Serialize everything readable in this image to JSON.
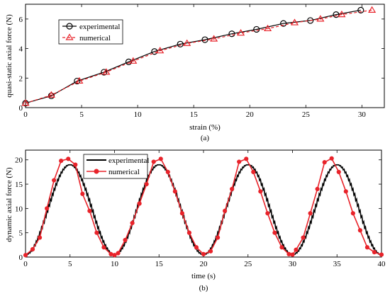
{
  "chart_data": [
    {
      "type": "line",
      "caption": "(a)",
      "xlabel": "strain (%)",
      "ylabel": "quasi-static axial force (N)",
      "xlim": [
        0,
        32
      ],
      "ylim": [
        0,
        7
      ],
      "xticks": [
        0,
        5,
        10,
        15,
        20,
        25,
        30
      ],
      "yticks": [
        0,
        2,
        4,
        6
      ],
      "grid": false,
      "legend_position": "top-left",
      "series": [
        {
          "name": "experimental",
          "color": "#000000",
          "marker": "circle",
          "dash": "solid",
          "x": [
            0,
            2.3,
            4.6,
            7,
            9.2,
            11.5,
            13.8,
            16,
            18.4,
            20.6,
            23,
            25.4,
            27.7,
            29.9
          ],
          "y": [
            0.3,
            0.8,
            1.8,
            2.4,
            3.1,
            3.8,
            4.3,
            4.6,
            5.0,
            5.3,
            5.7,
            5.9,
            6.3,
            6.6
          ]
        },
        {
          "name": "numerical",
          "color": "#e8232a",
          "marker": "triangle",
          "dash": "dashed",
          "x": [
            0,
            2.3,
            4.8,
            7.2,
            9.6,
            12,
            14.4,
            16.8,
            19.2,
            21.6,
            24,
            26.3,
            28.2,
            30.9
          ],
          "y": [
            0.3,
            0.85,
            1.8,
            2.4,
            3.15,
            3.85,
            4.35,
            4.65,
            5.05,
            5.35,
            5.75,
            6.0,
            6.3,
            6.6
          ]
        }
      ]
    },
    {
      "type": "line",
      "caption": "(b)",
      "xlabel": "time (s)",
      "ylabel": "dynamic axial force (N)",
      "xlim": [
        0,
        40
      ],
      "ylim": [
        0,
        22
      ],
      "xticks": [
        0,
        5,
        10,
        15,
        20,
        25,
        30,
        35,
        40
      ],
      "yticks": [
        0,
        5,
        10,
        15,
        20
      ],
      "grid": false,
      "legend_position": "top-left",
      "signal": {
        "period_s": 10,
        "min": 0.5,
        "max": 19,
        "samples": 401
      },
      "series": [
        {
          "name": "experimental",
          "color": "#000000",
          "marker": "none",
          "dash": "solid"
        },
        {
          "name": "numerical",
          "color": "#e8232a",
          "marker": "dot",
          "dash": "solid",
          "x": [
            0,
            0.8,
            1.6,
            2.4,
            3.2,
            4.0,
            4.8,
            5.6,
            6.4,
            7.2,
            8.0,
            8.8,
            9.6,
            10.0,
            10.4,
            11.2,
            12.0,
            12.8,
            13.6,
            14.4,
            15.2,
            16.0,
            16.8,
            17.6,
            18.4,
            19.2,
            20.0,
            20.8,
            21.6,
            22.4,
            23.2,
            24.0,
            24.8,
            25.6,
            26.4,
            27.2,
            28.0,
            28.8,
            29.6,
            30.0,
            30.4,
            31.2,
            32.0,
            32.8,
            33.6,
            34.4,
            35.2,
            36.0,
            36.8,
            37.6,
            38.4,
            39.2,
            40.0
          ],
          "y": [
            0.4,
            1.6,
            4.0,
            10.0,
            15.8,
            19.8,
            20.2,
            19.0,
            13.0,
            9.5,
            5.0,
            2.0,
            0.6,
            0.4,
            0.8,
            3.5,
            7.0,
            11.0,
            15.0,
            19.6,
            20.2,
            17.5,
            13.5,
            9.0,
            5.0,
            2.0,
            0.6,
            1.2,
            4.0,
            9.5,
            14.0,
            19.6,
            20.2,
            17.5,
            13.5,
            9.0,
            5.0,
            2.0,
            0.6,
            0.5,
            1.5,
            4.0,
            9.0,
            14.0,
            19.5,
            20.3,
            17.5,
            13.5,
            9.0,
            5.5,
            2.0,
            1.0,
            0.5
          ]
        }
      ]
    }
  ]
}
